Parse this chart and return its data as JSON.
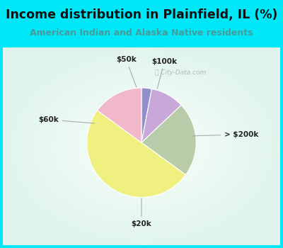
{
  "title": "Income distribution in Plainfield, IL (%)",
  "subtitle": "American Indian and Alaska Native residents",
  "title_color": "#111111",
  "subtitle_color": "#4a9a9a",
  "background_color": "#00e8f8",
  "chart_bg_top_left": "#c8e8e0",
  "chart_bg_center": "#e8f5f2",
  "labels": [
    "$20k",
    "$60k",
    "$50k",
    "$100k",
    "> $200k"
  ],
  "values": [
    50,
    15,
    3,
    10,
    22
  ],
  "colors": [
    "#f0f080",
    "#f0b8c8",
    "#9090cc",
    "#c8a8d8",
    "#b8ccaa"
  ],
  "startangle": -60,
  "watermark": "City-Data.com"
}
